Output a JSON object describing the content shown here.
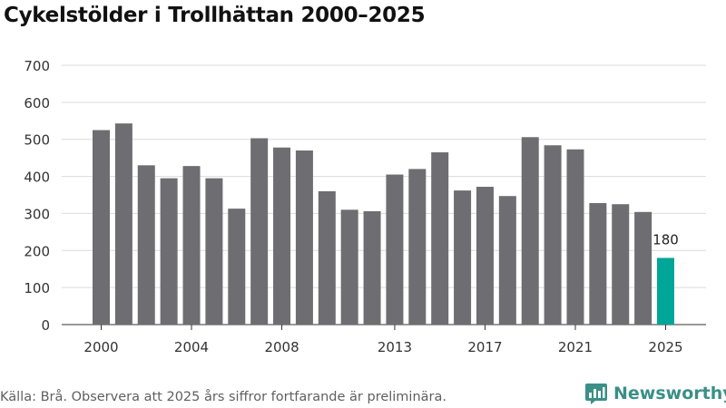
{
  "brand": {
    "name": "Newsworthy",
    "color": "#3a8f86",
    "logo_icon": "bar-chart-logo-icon"
  },
  "footer": {
    "source": "Källa: Brå. Observera att 2025 års siffror fortfarande är preliminära."
  },
  "chart_data": {
    "type": "bar",
    "title": "Cykelstölder i Trollhättan 2000–2025",
    "xlabel": "",
    "ylabel": "",
    "ylim": [
      0,
      700
    ],
    "yticks": [
      0,
      100,
      200,
      300,
      400,
      500,
      600,
      700
    ],
    "grid": true,
    "categories": [
      "2000",
      "2001",
      "2002",
      "2003",
      "2004",
      "2005",
      "2006",
      "2007",
      "2008",
      "2009",
      "2010",
      "2011",
      "2012",
      "2013",
      "2014",
      "2015",
      "2016",
      "2017",
      "2018",
      "2019",
      "2020",
      "2021",
      "2022",
      "2023",
      "2024",
      "2025"
    ],
    "values": [
      525,
      543,
      430,
      395,
      428,
      395,
      313,
      503,
      478,
      470,
      360,
      310,
      306,
      405,
      420,
      465,
      362,
      372,
      347,
      506,
      484,
      473,
      328,
      325,
      304,
      180
    ],
    "xtick_labels": [
      "2000",
      "2004",
      "2008",
      "2013",
      "2017",
      "2021",
      "2025"
    ],
    "bar_color": "#6e6d71",
    "highlight_color": "#00a698",
    "highlight": {
      "category": "2025",
      "label": "180"
    }
  }
}
